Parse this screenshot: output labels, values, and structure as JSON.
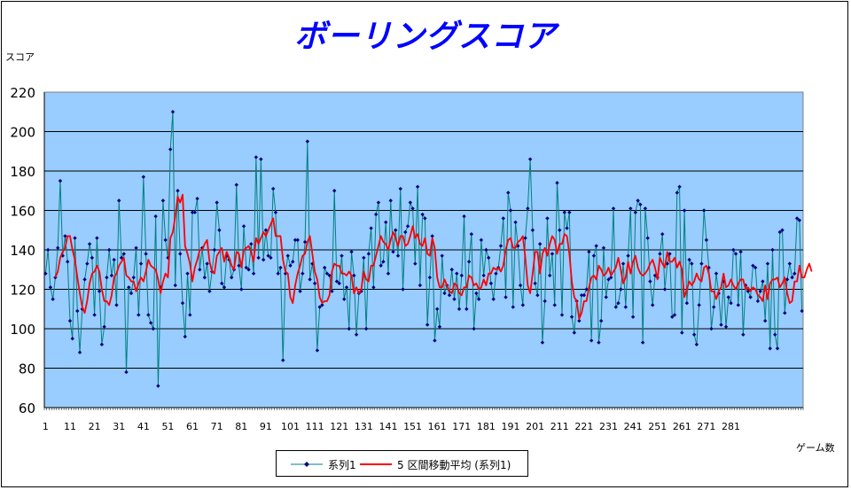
{
  "chart_data": {
    "type": "line",
    "title": "ボーリングスコア",
    "ylabel": "スコア",
    "xlabel": "ゲーム数",
    "ylim": [
      60,
      220
    ],
    "yticks": [
      60,
      80,
      100,
      120,
      140,
      160,
      180,
      200,
      220
    ],
    "xtick_labels": [
      "1",
      "11",
      "21",
      "31",
      "41",
      "51",
      "61",
      "71",
      "81",
      "91",
      "101",
      "111",
      "121",
      "131",
      "141",
      "151",
      "161",
      "171",
      "181",
      "191",
      "201",
      "211",
      "221",
      "231",
      "241",
      "251",
      "261",
      "271",
      "281"
    ],
    "grid": "horizontal",
    "plot_background": "#99ccff",
    "legend_position": "bottom",
    "series": [
      {
        "name": "系列1",
        "color": "#008080",
        "marker_color": "#000080",
        "values": [
          128,
          140,
          121,
          115,
          126,
          141,
          175,
          137,
          147,
          134,
          104,
          95,
          146,
          109,
          88,
          110,
          125,
          133,
          143,
          136,
          107,
          146,
          119,
          92,
          101,
          126,
          140,
          127,
          135,
          112,
          165,
          136,
          138,
          78,
          121,
          118,
          126,
          141,
          107,
          133,
          177,
          138,
          107,
          103,
          100,
          157,
          71,
          121,
          165,
          145,
          136,
          191,
          210,
          122,
          170,
          138,
          113,
          96,
          128,
          107,
          159,
          159,
          166,
          130,
          141,
          126,
          133,
          119,
          129,
          140,
          164,
          150,
          123,
          121,
          137,
          135,
          126,
          130,
          173,
          132,
          120,
          152,
          131,
          130,
          143,
          128,
          187,
          136,
          186,
          135,
          150,
          137,
          136,
          171,
          159,
          128,
          131,
          84,
          128,
          137,
          132,
          134,
          145,
          145,
          119,
          128,
          144,
          195,
          125,
          133,
          123,
          89,
          111,
          112,
          131,
          128,
          127,
          119,
          170,
          124,
          123,
          137,
          115,
          121,
          100,
          139,
          127,
          97,
          118,
          119,
          136,
          100,
          138,
          151,
          121,
          158,
          164,
          132,
          134,
          154,
          128,
          165,
          139,
          150,
          137,
          171,
          120,
          149,
          152,
          164,
          161,
          133,
          172,
          122,
          158,
          156,
          102,
          126,
          147,
          94,
          110,
          101,
          137,
          118,
          122,
          117,
          130,
          115,
          128,
          110,
          127,
          157,
          110,
          134,
          148,
          100,
          118,
          115,
          145,
          127,
          140,
          136,
          123,
          115,
          128,
          131,
          142,
          156,
          116,
          169,
          160,
          111,
          154,
          142,
          122,
          112,
          146,
          161,
          186,
          150,
          123,
          117,
          143,
          93,
          114,
          156,
          127,
          138,
          112,
          174,
          150,
          107,
          159,
          151,
          159,
          106,
          98,
          114,
          104,
          117,
          117,
          120,
          139,
          94,
          137,
          142,
          93,
          104,
          141,
          116,
          125,
          126,
          161,
          111,
          113,
          120,
          133,
          111,
          137,
          161,
          106,
          159,
          165,
          163,
          93,
          161,
          146,
          124,
          112,
          127,
          126,
          138,
          148,
          120,
          133,
          138,
          106,
          107,
          169,
          172,
          98,
          160,
          113,
          135,
          133,
          97,
          92,
          112,
          133,
          160,
          145,
          131,
          100,
          111,
          128,
          118,
          102,
          124,
          101,
          116,
          113,
          140,
          138,
          112,
          139,
          97,
          122,
          119,
          116,
          132,
          131,
          114,
          119,
          124,
          104,
          133,
          90,
          140,
          97,
          90,
          149,
          150,
          108,
          125,
          133,
          126,
          128,
          156,
          155,
          109
        ]
      },
      {
        "name": "5 区間移動平均 (系列1)",
        "color": "#ff0000",
        "values": [
          null,
          null,
          null,
          null,
          126,
          129,
          136,
          139,
          141,
          147,
          147,
          140,
          135,
          126,
          118,
          111,
          108,
          114,
          123,
          128,
          129,
          132,
          129,
          120,
          114,
          114,
          112,
          117,
          126,
          128,
          132,
          134,
          136,
          127,
          126,
          124,
          124,
          119,
          123,
          126,
          124,
          129,
          135,
          132,
          131,
          130,
          125,
          118,
          124,
          128,
          126,
          146,
          149,
          157,
          167,
          164,
          168,
          142,
          138,
          133,
          124,
          131,
          135,
          140,
          140,
          143,
          145,
          134,
          129,
          128,
          137,
          139,
          141,
          134,
          139,
          136,
          132,
          130,
          139,
          138,
          131,
          140,
          141,
          142,
          139,
          134,
          146,
          143,
          146,
          149,
          147,
          150,
          153,
          156,
          147,
          147,
          147,
          135,
          129,
          128,
          116,
          113,
          122,
          128,
          132,
          137,
          138,
          144,
          147,
          138,
          129,
          125,
          116,
          113,
          114,
          114,
          117,
          129,
          133,
          132,
          132,
          128,
          128,
          127,
          129,
          127,
          118,
          121,
          118,
          120,
          129,
          125,
          124,
          132,
          132,
          137,
          142,
          147,
          144,
          143,
          140,
          145,
          149,
          146,
          142,
          147,
          147,
          142,
          143,
          147,
          152,
          146,
          148,
          143,
          142,
          146,
          138,
          137,
          146,
          141,
          126,
          121,
          121,
          125,
          122,
          119,
          118,
          123,
          122,
          118,
          117,
          121,
          121,
          127,
          126,
          122,
          123,
          120,
          121,
          125,
          122,
          128,
          128,
          131,
          130,
          131,
          129,
          132,
          140,
          145,
          146,
          141,
          141,
          144,
          145,
          147,
          136,
          122,
          118,
          128,
          139,
          139,
          128,
          138,
          141,
          137,
          143,
          147,
          145,
          138,
          143,
          143,
          148,
          147,
          138,
          124,
          116,
          114,
          105,
          108,
          114,
          114,
          121,
          126,
          127,
          125,
          132,
          130,
          127,
          128,
          131,
          127,
          129,
          131,
          136,
          130,
          123,
          126,
          134,
          128,
          134,
          137,
          131,
          128,
          127,
          128,
          130,
          133,
          135,
          131,
          125,
          136,
          133,
          131,
          139,
          134,
          134,
          136,
          131,
          134,
          130,
          116,
          120,
          124,
          122,
          124,
          128,
          125,
          124,
          131,
          132,
          128,
          119,
          119,
          115,
          119,
          121,
          128,
          121,
          122,
          125,
          122,
          120,
          123,
          125,
          125,
          120,
          121,
          119,
          121,
          120,
          117,
          116,
          114,
          122,
          115,
          123,
          125,
          125,
          126,
          121,
          123,
          126,
          118,
          113,
          114,
          124,
          124,
          132,
          126,
          126,
          130,
          133,
          129
        ]
      }
    ]
  },
  "legend": {
    "series1_label": "系列1",
    "series2_label": "5 区間移動平均 (系列1)"
  }
}
